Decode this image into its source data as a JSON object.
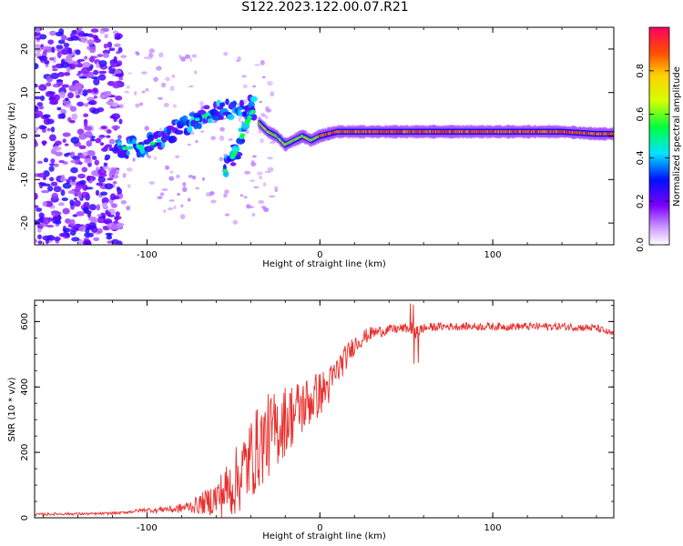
{
  "title": "S122.2023.122.00.07.R21",
  "chart_data": [
    {
      "type": "heatmap",
      "xlabel": "Height of straight line (km)",
      "ylabel": "Frequency (Hz)",
      "xlim": [
        -165,
        170
      ],
      "ylim": [
        -25,
        25
      ],
      "xticks": [
        -100,
        0,
        100
      ],
      "xticklabels": [
        "-100",
        "0",
        "100"
      ],
      "yticks": [
        -20,
        -10,
        0,
        10,
        20
      ],
      "yticklabels": [
        "-20",
        "-10",
        "0",
        "10",
        "20"
      ],
      "colorbar": {
        "label": "Normalized spectral amplitude",
        "range": [
          0,
          1
        ],
        "ticks": [
          0.0,
          0.2,
          0.4,
          0.6,
          0.8
        ],
        "ticklabels": [
          "0.0",
          "0.2",
          "0.4",
          "0.6",
          "0.8"
        ],
        "colormap": [
          "#ffffff",
          "#cc99ff",
          "#7b00ff",
          "#0010ff",
          "#00e5ff",
          "#00ff40",
          "#d4ff00",
          "#ffd000",
          "#ff5000",
          "#ff0060"
        ]
      },
      "features": [
        {
          "name": "noise",
          "x_range": [
            -165,
            -115
          ],
          "freq_range": [
            -25,
            25
          ],
          "amplitude": 0.25
        },
        {
          "name": "rising_trace",
          "x": [
            -118,
            -105,
            -95,
            -85,
            -75,
            -65,
            -55,
            -45,
            -38
          ],
          "freq": [
            -3,
            -2.5,
            -1.5,
            1,
            3,
            5,
            6,
            6.5,
            7
          ],
          "amplitude": 0.3
        },
        {
          "name": "descending_branch",
          "x": [
            -55,
            -52,
            -48,
            -45,
            -42,
            -40,
            -38
          ],
          "freq": [
            -8,
            -6,
            -3,
            0,
            3,
            5,
            6
          ],
          "amplitude": 0.3
        },
        {
          "name": "main_trace",
          "x": [
            -35,
            -30,
            -25,
            -20,
            -15,
            -10,
            -5,
            0,
            10,
            20,
            40,
            60,
            80,
            100,
            120,
            140,
            160,
            170
          ],
          "freq": [
            3,
            1,
            0,
            -2,
            -1,
            0,
            -1,
            0,
            1,
            1,
            1,
            1,
            1,
            1,
            1,
            1,
            0.5,
            0.5
          ],
          "amplitude": 0.85
        }
      ]
    },
    {
      "type": "line",
      "xlabel": "Height of straight line (km)",
      "ylabel": "SNR (10 * v/v)",
      "xlim": [
        -165,
        170
      ],
      "ylim": [
        0,
        665
      ],
      "xticks": [
        -100,
        0,
        100
      ],
      "xticklabels": [
        "-100",
        "0",
        "100"
      ],
      "yticks": [
        0,
        200,
        400,
        600
      ],
      "yticklabels": [
        "0",
        "200",
        "400",
        "600"
      ],
      "line_color": "#e8302d",
      "series": [
        {
          "x": [
            -165,
            -150,
            -130,
            -115,
            -100,
            -95,
            -90,
            -85,
            -80,
            -75,
            -70,
            -65,
            -60,
            -55,
            -50,
            -45,
            -40,
            -35,
            -30,
            -25,
            -20,
            -15,
            -10,
            -5,
            0,
            5,
            10,
            15,
            20,
            25,
            30,
            40,
            50,
            55,
            60,
            70,
            80,
            100,
            120,
            140,
            160,
            170
          ],
          "values": [
            10,
            12,
            12,
            15,
            25,
            22,
            28,
            25,
            30,
            35,
            40,
            50,
            60,
            80,
            100,
            140,
            180,
            220,
            250,
            270,
            300,
            320,
            340,
            360,
            380,
            400,
            450,
            490,
            530,
            550,
            565,
            575,
            580,
            570,
            580,
            585,
            585,
            585,
            585,
            585,
            580,
            560
          ],
          "noise_amplitude": [
            4,
            4,
            4,
            4,
            6,
            8,
            10,
            12,
            15,
            20,
            30,
            40,
            60,
            80,
            100,
            120,
            130,
            130,
            130,
            120,
            110,
            100,
            90,
            80,
            70,
            60,
            50,
            40,
            30,
            25,
            20,
            15,
            15,
            30,
            15,
            12,
            12,
            12,
            12,
            12,
            12,
            10
          ]
        }
      ]
    }
  ]
}
